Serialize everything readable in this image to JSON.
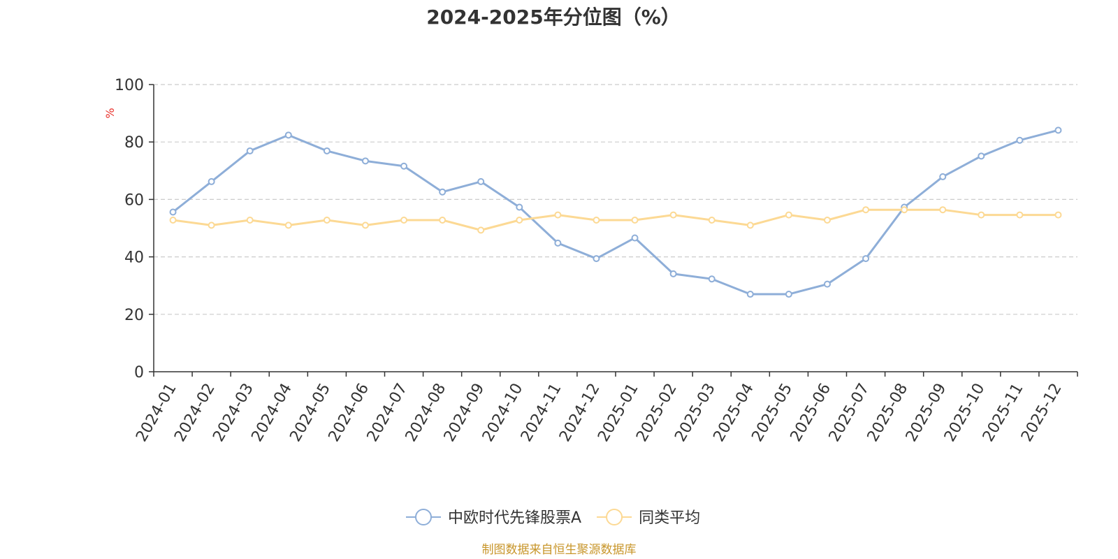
{
  "chart_data": {
    "type": "line",
    "title": "2024-2025年分位图（%）",
    "ylabel": "%",
    "xlabel": "",
    "ylim": [
      0,
      100
    ],
    "yticks": [
      0,
      20,
      40,
      60,
      80,
      100
    ],
    "grid": true,
    "legend_position": "bottom-center",
    "categories": [
      "2024-01",
      "2024-02",
      "2024-03",
      "2024-04",
      "2024-05",
      "2024-06",
      "2024-07",
      "2024-08",
      "2024-09",
      "2024-10",
      "2024-11",
      "2024-12",
      "2025-01",
      "2025-02",
      "2025-03",
      "2025-04",
      "2025-05",
      "2025-06",
      "2025-07",
      "2025-08",
      "2025-09",
      "2025-10",
      "2025-11",
      "2025-12"
    ],
    "series": [
      {
        "name": "中欧时代先锋股票A",
        "color": "#8eaed8",
        "values": [
          55.6,
          66.2,
          76.9,
          82.4,
          76.9,
          73.4,
          71.6,
          62.6,
          66.2,
          57.3,
          44.8,
          39.4,
          46.6,
          34.1,
          32.3,
          27.0,
          27.0,
          30.5,
          39.4,
          57.3,
          67.9,
          75.1,
          80.6,
          84.1
        ]
      },
      {
        "name": "同类平均",
        "color": "#fcd994",
        "values": [
          52.8,
          51.0,
          52.8,
          51.0,
          52.8,
          51.0,
          52.8,
          52.8,
          49.3,
          52.8,
          54.6,
          52.8,
          52.8,
          54.6,
          52.8,
          51.0,
          54.6,
          52.8,
          56.4,
          56.4,
          56.4,
          54.6,
          54.6,
          54.6
        ]
      }
    ]
  },
  "source_text": "制图数据来自恒生聚源数据库",
  "colors": {
    "axis": "#333333",
    "grid": "#cccccc",
    "unit": "#e8312b",
    "source": "#c8962b"
  }
}
